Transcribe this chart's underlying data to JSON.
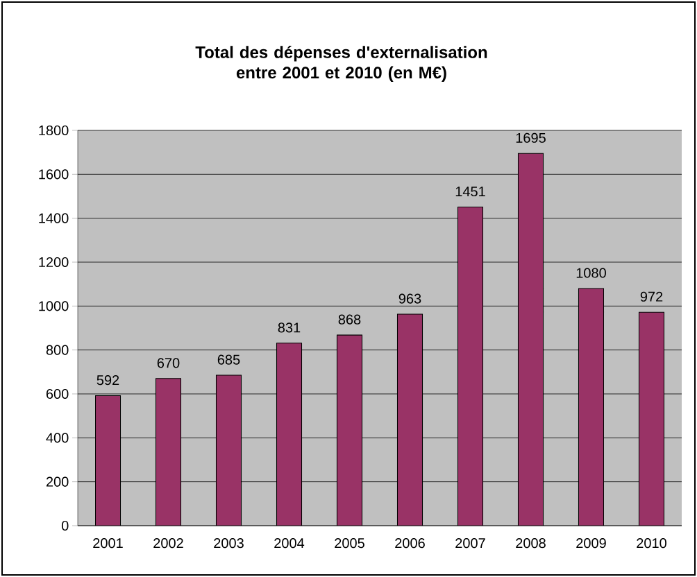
{
  "chart_data": {
    "type": "bar",
    "title": "Total des dépenses d'externalisation entre 2001 et 2010 (en M€)",
    "categories": [
      "2001",
      "2002",
      "2003",
      "2004",
      "2005",
      "2006",
      "2007",
      "2008",
      "2009",
      "2010"
    ],
    "values": [
      592,
      670,
      685,
      831,
      868,
      963,
      1451,
      1695,
      1080,
      972
    ],
    "color": "#993366",
    "ylim": [
      0,
      1800
    ],
    "yticks": [
      0,
      200,
      400,
      600,
      800,
      1000,
      1200,
      1400,
      1600,
      1800
    ],
    "grid": "y",
    "data_labels": true
  }
}
